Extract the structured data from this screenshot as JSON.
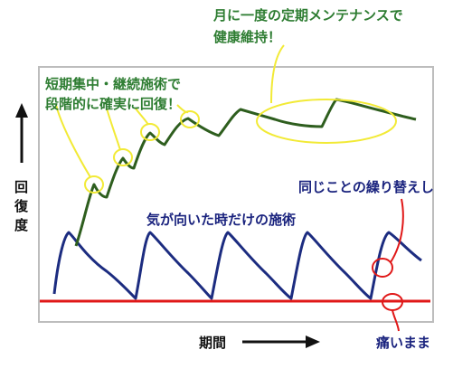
{
  "annotations": {
    "maintenance_line1": "月に一度の定期メンテナンスで",
    "maintenance_line2": "健康維持！",
    "focused_line1": "短期集中・継続施術で",
    "focused_line2": "段階的に確実に回復！",
    "whim": "気が向いた時だけの施術",
    "repeat": "同じことの繰り替えし",
    "still_pain": "痛いまま"
  },
  "axes": {
    "y_label_chars": [
      "回",
      "復",
      "度"
    ],
    "x_label": "期間"
  },
  "colors": {
    "green_line": "#2e5e1e",
    "navy_line": "#1c2c80",
    "red_line": "#e01818",
    "highlight_yellow": "#f2ea36",
    "green_text": "#2e7d32",
    "navy_text": "#1a237e"
  }
}
